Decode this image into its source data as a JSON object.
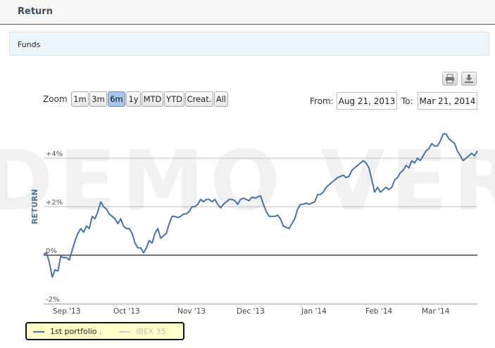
{
  "header": {
    "title": "Return"
  },
  "funds_panel": {
    "label": "Funds"
  },
  "toolbar": {
    "zoom_label": "Zoom",
    "zoom_buttons": [
      "1m",
      "3m",
      "6m",
      "1y",
      "MTD",
      "YTD",
      "Creat.",
      "All"
    ],
    "selected_zoom": "6m",
    "from_label": "From:",
    "from_value": "Aug 21, 2013",
    "to_label": "To:",
    "to_value": "Mar 21, 2014",
    "export_icons": [
      "print-icon",
      "download-icon"
    ]
  },
  "watermark": "DEMO VER",
  "chart_data": {
    "type": "line",
    "title": "",
    "ylabel": "RETURN",
    "xlabel": "",
    "ylim": [
      -2,
      6
    ],
    "yticks": [
      -2,
      0,
      2,
      4
    ],
    "ytick_labels": [
      "-2%",
      "0%",
      "+2%",
      "+4%"
    ],
    "xtick_labels": [
      "Sep '13",
      "Oct '13",
      "Nov '13",
      "Dec '13",
      "Jan '14",
      "Feb '14",
      "Mar '14"
    ],
    "grid": true,
    "legend_position": "bottom-left",
    "series": [
      {
        "name": "1st portfolio .",
        "color": "#4572a7",
        "visible": true,
        "values": [
          0.05,
          0.1,
          -0.3,
          -0.9,
          -0.6,
          -0.65,
          -0.05,
          -0.1,
          -0.1,
          -0.2,
          0.2,
          0.6,
          0.9,
          1.1,
          0.95,
          1.2,
          1.1,
          1.6,
          1.5,
          1.8,
          2.2,
          2.0,
          1.9,
          1.7,
          1.6,
          1.5,
          1.3,
          1.5,
          1.2,
          1.1,
          1.1,
          0.9,
          0.5,
          0.3,
          0.3,
          0.1,
          0.3,
          0.6,
          0.5,
          0.9,
          1.1,
          0.7,
          0.8,
          0.9,
          1.3,
          1.6,
          1.6,
          1.55,
          1.6,
          1.7,
          1.7,
          1.8,
          2.0,
          2.0,
          2.1,
          2.3,
          2.2,
          2.3,
          2.3,
          2.2,
          2.3,
          2.1,
          1.95,
          2.1,
          2.2,
          2.3,
          2.3,
          2.25,
          2.1,
          2.3,
          2.35,
          2.3,
          2.25,
          2.4,
          2.35,
          2.4,
          2.45,
          2.1,
          1.8,
          1.6,
          1.6,
          1.6,
          1.65,
          1.5,
          1.2,
          1.15,
          1.1,
          1.3,
          1.5,
          1.9,
          2.1,
          2.1,
          2.15,
          2.1,
          2.15,
          2.2,
          2.5,
          2.5,
          2.6,
          2.8,
          2.9,
          3.0,
          3.1,
          3.2,
          3.25,
          3.3,
          3.2,
          3.25,
          3.5,
          3.6,
          3.7,
          3.8,
          3.9,
          3.8,
          3.6,
          3.1,
          2.6,
          2.8,
          2.6,
          2.7,
          2.8,
          2.7,
          2.8,
          3.1,
          3.2,
          3.4,
          3.5,
          3.7,
          3.6,
          3.9,
          3.8,
          4.0,
          3.9,
          4.1,
          4.3,
          4.4,
          4.6,
          4.5,
          4.5,
          4.7,
          5.0,
          5.0,
          4.8,
          4.7,
          4.6,
          4.3,
          4.1,
          3.9,
          4.0,
          4.1,
          4.2,
          4.1,
          4.3
        ]
      },
      {
        "name": "IBEX 35",
        "color": "#c8c8c8",
        "visible": false,
        "values": []
      }
    ]
  }
}
